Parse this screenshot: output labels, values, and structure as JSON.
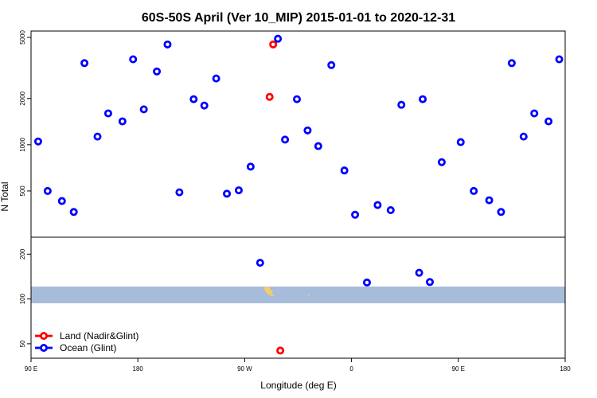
{
  "chart_data": {
    "type": "scatter",
    "title": "60S-50S April (Ver 10_MIP)   2015-01-01 to 2020-12-31",
    "xlabel": "Longitude (deg E)",
    "ylabel": "N Total",
    "x_ticks": [
      {
        "value": 90,
        "label": "90 E"
      },
      {
        "value": 180,
        "label": "180"
      },
      {
        "value": 270,
        "label": "90 W"
      },
      {
        "value": 360,
        "label": "0"
      },
      {
        "value": 450,
        "label": "90 E"
      },
      {
        "value": 540,
        "label": "180"
      }
    ],
    "xlim": [
      90,
      540
    ],
    "top_panel": {
      "scale": "log",
      "ylim": [
        250,
        5500
      ],
      "y_ticks": [
        {
          "value": 500,
          "label": "500"
        },
        {
          "value": 1000,
          "label": "1000"
        },
        {
          "value": 2000,
          "label": "2000"
        },
        {
          "value": 5000,
          "label": "5000"
        }
      ],
      "series": [
        {
          "name": "Land (Nadir&Glint)",
          "color": "#ff0000",
          "points": [
            [
              291,
              2050
            ],
            [
              294,
              4500
            ]
          ]
        },
        {
          "name": "Ocean (Glint)",
          "color": "#0000ff",
          "points": [
            [
              96,
              1050
            ],
            [
              104,
              500
            ],
            [
              116,
              430
            ],
            [
              126,
              365
            ],
            [
              135,
              3400
            ],
            [
              146,
              1130
            ],
            [
              155,
              1600
            ],
            [
              167,
              1420
            ],
            [
              176,
              3600
            ],
            [
              185,
              1700
            ],
            [
              196,
              3000
            ],
            [
              205,
              4500
            ],
            [
              215,
              490
            ],
            [
              227,
              1980
            ],
            [
              236,
              1800
            ],
            [
              246,
              2700
            ],
            [
              255,
              480
            ],
            [
              265,
              505
            ],
            [
              275,
              720
            ],
            [
              298,
              4900
            ],
            [
              304,
              1080
            ],
            [
              314,
              1980
            ],
            [
              323,
              1240
            ],
            [
              332,
              980
            ],
            [
              343,
              3300
            ],
            [
              354,
              680
            ],
            [
              363,
              350
            ],
            [
              382,
              405
            ],
            [
              393,
              375
            ],
            [
              402,
              1820
            ],
            [
              420,
              1980
            ],
            [
              436,
              770
            ],
            [
              452,
              1040
            ],
            [
              463,
              500
            ],
            [
              476,
              435
            ],
            [
              486,
              365
            ],
            [
              495,
              3400
            ],
            [
              505,
              1130
            ],
            [
              514,
              1600
            ],
            [
              526,
              1420
            ],
            [
              535,
              3600
            ]
          ]
        }
      ]
    },
    "bottom_panel": {
      "scale": "log",
      "ylim": [
        40,
        260
      ],
      "y_ticks": [
        {
          "value": 50,
          "label": "50"
        },
        {
          "value": 100,
          "label": "100"
        },
        {
          "value": 200,
          "label": "200"
        }
      ],
      "series": [
        {
          "name": "Land (Nadir&Glint)",
          "color": "#ff0000",
          "points": [
            [
              300,
              45
            ]
          ]
        },
        {
          "name": "Ocean (Glint)",
          "color": "#0000ff",
          "points": [
            [
              283,
              175
            ],
            [
              373,
              129
            ],
            [
              417,
              150
            ],
            [
              426,
              130
            ]
          ]
        }
      ]
    },
    "legend": {
      "placement": "bottom-left",
      "entries": [
        {
          "label": "Land (Nadir&Glint)",
          "color": "#ff0000"
        },
        {
          "label": "Ocean (Glint)",
          "color": "#0000ff"
        }
      ]
    },
    "background_map": {
      "band_color": "#a7bcdb",
      "land_color": "#f5cd6a"
    }
  }
}
